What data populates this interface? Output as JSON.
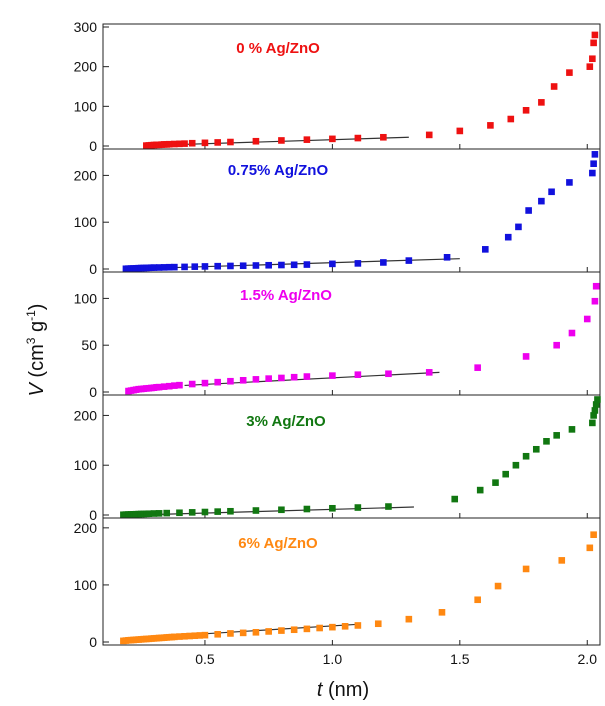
{
  "figure": {
    "y_axis_title": {
      "var": "V",
      "open": " (cm",
      "sup1": "3",
      "mid": " g",
      "sup2": "-1",
      "close": ")"
    },
    "x_axis_title": {
      "var": "t",
      "unit": " (nm)"
    }
  },
  "chart_data": [
    {
      "type": "scatter",
      "title": "0 % Ag/ZnO",
      "color": "#ee1111",
      "xlim": [
        0.1,
        2.05
      ],
      "ylim": [
        0,
        300
      ],
      "yticks": [
        "0",
        "100",
        "200",
        "300"
      ],
      "xticks": [],
      "x": [
        0.27,
        0.28,
        0.29,
        0.3,
        0.31,
        0.32,
        0.33,
        0.34,
        0.35,
        0.36,
        0.38,
        0.4,
        0.42,
        0.45,
        0.5,
        0.55,
        0.6,
        0.7,
        0.8,
        0.9,
        1.0,
        1.1,
        1.2,
        1.38,
        1.5,
        1.62,
        1.7,
        1.76,
        1.82,
        1.87,
        1.93,
        2.01,
        2.02,
        2.025,
        2.03
      ],
      "y": [
        1,
        1.5,
        2,
        2.5,
        3,
        3,
        3.5,
        4,
        4,
        4.5,
        5,
        5.5,
        6,
        7,
        8,
        9,
        10,
        12,
        14,
        16,
        18,
        20,
        22,
        28,
        38,
        52,
        68,
        90,
        110,
        150,
        185,
        200,
        220,
        260,
        280
      ],
      "fit_line": {
        "x": [
          0.32,
          1.3
        ],
        "y": [
          2,
          22
        ]
      }
    },
    {
      "type": "scatter",
      "title": "0.75% Ag/ZnO",
      "color": "#1111dd",
      "xlim": [
        0.1,
        2.05
      ],
      "ylim": [
        0,
        250
      ],
      "yticks": [
        "0",
        "100",
        "200"
      ],
      "xticks": [],
      "x": [
        0.19,
        0.2,
        0.21,
        0.22,
        0.23,
        0.24,
        0.25,
        0.26,
        0.27,
        0.28,
        0.29,
        0.3,
        0.32,
        0.34,
        0.36,
        0.38,
        0.42,
        0.46,
        0.5,
        0.55,
        0.6,
        0.65,
        0.7,
        0.75,
        0.8,
        0.85,
        0.9,
        1.0,
        1.1,
        1.2,
        1.3,
        1.45,
        1.6,
        1.69,
        1.73,
        1.77,
        1.82,
        1.86,
        1.93,
        2.02,
        2.025,
        2.03
      ],
      "y": [
        0.5,
        0.8,
        1,
        1.2,
        1.5,
        1.8,
        2,
        2.2,
        2.4,
        2.6,
        2.8,
        3,
        3.2,
        3.5,
        3.8,
        4,
        4.5,
        5,
        5.5,
        6,
        6.5,
        7,
        7.5,
        8,
        8.5,
        9,
        9.5,
        11,
        12,
        14,
        18,
        25,
        42,
        68,
        90,
        125,
        145,
        165,
        185,
        205,
        225,
        245
      ],
      "fit_line": {
        "x": [
          0.32,
          1.5
        ],
        "y": [
          2,
          22
        ]
      }
    },
    {
      "type": "scatter",
      "title": "1.5% Ag/ZnO",
      "color": "#ee00ee",
      "xlim": [
        0.1,
        2.05
      ],
      "ylim": [
        0,
        125
      ],
      "yticks": [
        "0",
        "50",
        "100"
      ],
      "xticks": [],
      "x": [
        0.2,
        0.21,
        0.22,
        0.23,
        0.24,
        0.25,
        0.26,
        0.27,
        0.28,
        0.29,
        0.3,
        0.31,
        0.32,
        0.34,
        0.36,
        0.38,
        0.4,
        0.45,
        0.5,
        0.55,
        0.6,
        0.65,
        0.7,
        0.75,
        0.8,
        0.85,
        0.9,
        1.0,
        1.1,
        1.22,
        1.38,
        1.57,
        1.76,
        1.88,
        1.94,
        2.0,
        2.03,
        2.035
      ],
      "y": [
        1,
        1.5,
        2,
        2.5,
        3,
        3.2,
        3.5,
        3.8,
        4,
        4.3,
        4.6,
        5,
        5.2,
        5.7,
        6.2,
        6.8,
        7.3,
        8.5,
        9.5,
        10.5,
        11.5,
        12.5,
        13.5,
        14.3,
        15,
        15.8,
        16.5,
        17.5,
        18.5,
        19.5,
        21,
        26,
        38,
        50,
        63,
        78,
        97,
        113
      ],
      "fit_line": {
        "x": [
          0.42,
          1.42
        ],
        "y": [
          7,
          21
        ]
      }
    },
    {
      "type": "scatter",
      "title": "3% Ag/ZnO",
      "color": "#117711",
      "xlim": [
        0.1,
        2.05
      ],
      "ylim": [
        0,
        235
      ],
      "yticks": [
        "0",
        "100",
        "200"
      ],
      "xticks": [],
      "x": [
        0.18,
        0.19,
        0.2,
        0.21,
        0.22,
        0.23,
        0.24,
        0.25,
        0.26,
        0.27,
        0.28,
        0.3,
        0.32,
        0.35,
        0.4,
        0.45,
        0.5,
        0.55,
        0.6,
        0.7,
        0.8,
        0.9,
        1.0,
        1.1,
        1.22,
        1.48,
        1.58,
        1.64,
        1.68,
        1.72,
        1.76,
        1.8,
        1.84,
        1.88,
        1.94,
        2.02,
        2.025,
        2.03,
        2.035,
        2.04
      ],
      "y": [
        0.5,
        0.8,
        1,
        1.2,
        1.4,
        1.6,
        1.8,
        2,
        2.2,
        2.4,
        2.6,
        3,
        3.3,
        3.8,
        4.5,
        5.3,
        6,
        6.8,
        7.5,
        9,
        10.5,
        12,
        13.5,
        15,
        17,
        32,
        50,
        65,
        82,
        100,
        118,
        132,
        148,
        160,
        172,
        185,
        200,
        210,
        222,
        232
      ],
      "fit_line": {
        "x": [
          0.27,
          1.32
        ],
        "y": [
          0.5,
          16
        ]
      }
    },
    {
      "type": "scatter",
      "title": "6% Ag/ZnO",
      "color": "#ff8811",
      "xlim": [
        0.1,
        2.05
      ],
      "ylim": [
        0,
        212
      ],
      "yticks": [
        "0",
        "100",
        "200"
      ],
      "xticks": [
        "0.5",
        "1.0",
        "1.5",
        "2.0"
      ],
      "xtick_values": [
        0.5,
        1.0,
        1.5,
        2.0
      ],
      "x": [
        0.18,
        0.19,
        0.2,
        0.21,
        0.22,
        0.23,
        0.24,
        0.25,
        0.26,
        0.27,
        0.28,
        0.29,
        0.3,
        0.31,
        0.32,
        0.33,
        0.34,
        0.35,
        0.36,
        0.37,
        0.38,
        0.4,
        0.42,
        0.44,
        0.46,
        0.48,
        0.5,
        0.55,
        0.6,
        0.65,
        0.7,
        0.75,
        0.8,
        0.85,
        0.9,
        0.95,
        1.0,
        1.05,
        1.1,
        1.18,
        1.3,
        1.43,
        1.57,
        1.65,
        1.76,
        1.9,
        2.01,
        2.025
      ],
      "y": [
        2,
        2.5,
        3,
        3.3,
        3.6,
        4,
        4.3,
        4.6,
        5,
        5.3,
        5.6,
        6,
        6.3,
        6.6,
        7,
        7.3,
        7.6,
        8,
        8.3,
        8.6,
        9,
        9.5,
        10,
        10.5,
        11,
        11.5,
        12,
        13.5,
        15,
        16,
        17,
        18.5,
        20,
        21.5,
        23,
        24.5,
        26,
        27.5,
        29,
        32,
        40,
        52,
        74,
        98,
        128,
        143,
        165,
        188
      ],
      "fit_line": {
        "x": [
          0.45,
          1.1
        ],
        "y": [
          13,
          31
        ]
      }
    }
  ]
}
